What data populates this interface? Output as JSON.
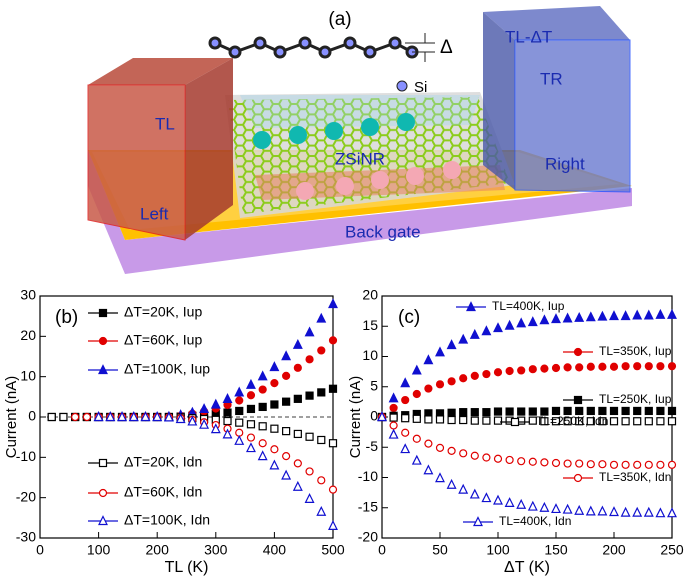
{
  "diagram": {
    "label": "(a)",
    "delta": "Δ",
    "si": "Si",
    "right_top": "TL-ΔT",
    "right_mid": "TR",
    "left_top": "TL",
    "left": "Left",
    "right": "Right",
    "ribbon": "ZSiNR",
    "gate": "Back gate"
  },
  "chart_data": [
    {
      "type": "scatter",
      "panel_label": "(b)",
      "xlabel": "TL (K)",
      "ylabel": "Current (nA)",
      "xlim": [
        0,
        500
      ],
      "xticks": [
        0,
        100,
        200,
        300,
        400,
        500
      ],
      "ylim": [
        -30,
        30
      ],
      "yticks": [
        -30,
        -20,
        -10,
        0,
        10,
        20,
        30
      ],
      "hline": 0,
      "x": [
        20,
        40,
        60,
        80,
        100,
        120,
        140,
        160,
        180,
        200,
        220,
        240,
        260,
        280,
        300,
        320,
        340,
        360,
        380,
        400,
        420,
        440,
        460,
        480,
        500
      ],
      "series": [
        {
          "name": "ΔT=20K, Iup",
          "color": "#000000",
          "marker": "square",
          "filled": true,
          "values": [
            0,
            0,
            0,
            0,
            0,
            0,
            0,
            0,
            0,
            0,
            0,
            0.1,
            0.3,
            0.5,
            0.8,
            1.1,
            1.5,
            2.0,
            2.5,
            3.1,
            3.8,
            4.5,
            5.3,
            6.1,
            7.0
          ]
        },
        {
          "name": "ΔT=60K, Iup",
          "color": "#e00000",
          "marker": "circle",
          "filled": true,
          "values": [
            null,
            null,
            0,
            0,
            0,
            0,
            0,
            0,
            0,
            0,
            0.1,
            0.3,
            0.8,
            1.4,
            2.1,
            3.0,
            4.1,
            5.4,
            6.8,
            8.4,
            10.2,
            12.2,
            14.3,
            16.5,
            19.0
          ]
        },
        {
          "name": "ΔT=100K, Iup",
          "color": "#1010d0",
          "marker": "triangle",
          "filled": true,
          "values": [
            null,
            null,
            null,
            null,
            0,
            0,
            0,
            0,
            0,
            0,
            0.1,
            0.5,
            1.1,
            2.0,
            3.1,
            4.5,
            6.1,
            8.0,
            10.1,
            12.4,
            15.1,
            17.9,
            21.0,
            24.4,
            28.0
          ]
        },
        {
          "name": "ΔT=20K, Idn",
          "color": "#000000",
          "marker": "square",
          "filled": false,
          "values": [
            0,
            0,
            0,
            0,
            0,
            0,
            0,
            0,
            0,
            0,
            0,
            -0.1,
            -0.3,
            -0.5,
            -0.7,
            -1.0,
            -1.4,
            -1.8,
            -2.3,
            -2.9,
            -3.5,
            -4.2,
            -4.9,
            -5.7,
            -6.5
          ]
        },
        {
          "name": "ΔT=60K, Idn",
          "color": "#e00000",
          "marker": "circle",
          "filled": false,
          "values": [
            null,
            null,
            0,
            0,
            0,
            0,
            0,
            0,
            0,
            0,
            -0.1,
            -0.3,
            -0.7,
            -1.3,
            -2.0,
            -2.9,
            -3.9,
            -5.1,
            -6.5,
            -8.0,
            -9.7,
            -11.5,
            -13.5,
            -15.7,
            -18.0
          ]
        },
        {
          "name": "ΔT=100K, Idn",
          "color": "#1010d0",
          "marker": "triangle",
          "filled": false,
          "values": [
            null,
            null,
            null,
            null,
            0,
            0,
            0,
            0,
            0,
            0,
            -0.1,
            -0.5,
            -1.1,
            -1.9,
            -3.0,
            -4.3,
            -5.9,
            -7.7,
            -9.7,
            -12.0,
            -14.5,
            -17.3,
            -20.3,
            -23.5,
            -27.0
          ]
        }
      ]
    },
    {
      "type": "scatter",
      "panel_label": "(c)",
      "xlabel": "ΔT (K)",
      "ylabel": "Current (nA)",
      "xlim": [
        0,
        250
      ],
      "xticks": [
        0,
        50,
        100,
        150,
        200,
        250
      ],
      "ylim": [
        -20,
        20
      ],
      "yticks": [
        -20,
        -15,
        -10,
        -5,
        0,
        5,
        10,
        15,
        20
      ],
      "x": [
        0,
        10,
        20,
        30,
        40,
        50,
        60,
        70,
        80,
        90,
        100,
        110,
        120,
        130,
        140,
        150,
        160,
        170,
        180,
        190,
        200,
        210,
        220,
        230,
        240,
        250
      ],
      "series": [
        {
          "name": "TL=400K, Iup",
          "color": "#1010d0",
          "marker": "triangle",
          "filled": true,
          "values": [
            0,
            3.1,
            5.6,
            7.7,
            9.4,
            10.7,
            11.9,
            12.8,
            13.6,
            14.2,
            14.7,
            15.1,
            15.5,
            15.7,
            16.0,
            16.2,
            16.3,
            16.4,
            16.5,
            16.6,
            16.7,
            16.7,
            16.8,
            16.8,
            16.9,
            16.9
          ]
        },
        {
          "name": "TL=350K, Iup",
          "color": "#e00000",
          "marker": "circle",
          "filled": true,
          "values": [
            0,
            1.5,
            2.8,
            3.8,
            4.7,
            5.4,
            5.9,
            6.4,
            6.8,
            7.1,
            7.4,
            7.6,
            7.7,
            7.9,
            8.0,
            8.1,
            8.2,
            8.2,
            8.3,
            8.3,
            8.3,
            8.4,
            8.4,
            8.4,
            8.4,
            8.4
          ]
        },
        {
          "name": "TL=250K, Iup",
          "color": "#000000",
          "marker": "square",
          "filled": true,
          "values": [
            0,
            0.2,
            0.3,
            0.5,
            0.6,
            0.6,
            0.7,
            0.8,
            0.8,
            0.8,
            0.9,
            0.9,
            0.9,
            0.9,
            0.9,
            1.0,
            1.0,
            1.0,
            1.0,
            1.0,
            1.0,
            1.0,
            1.0,
            1.0,
            1.0,
            1.0
          ]
        },
        {
          "name": "TL=250K, Idn",
          "color": "#000000",
          "marker": "square",
          "filled": false,
          "values": [
            0,
            -0.1,
            -0.2,
            -0.3,
            -0.4,
            -0.4,
            -0.5,
            -0.5,
            -0.6,
            -0.6,
            -0.6,
            -0.6,
            -0.6,
            -0.6,
            -0.7,
            -0.7,
            -0.7,
            -0.7,
            -0.7,
            -0.7,
            -0.7,
            -0.7,
            -0.7,
            -0.7,
            -0.7,
            -0.7
          ]
        },
        {
          "name": "TL=350K, Idn",
          "color": "#e00000",
          "marker": "circle",
          "filled": false,
          "values": [
            0,
            -1.4,
            -2.6,
            -3.6,
            -4.4,
            -5.1,
            -5.6,
            -6.0,
            -6.4,
            -6.7,
            -6.9,
            -7.1,
            -7.3,
            -7.4,
            -7.5,
            -7.6,
            -7.7,
            -7.7,
            -7.8,
            -7.8,
            -7.9,
            -7.9,
            -7.9,
            -7.9,
            -7.9,
            -7.9
          ]
        },
        {
          "name": "TL=400K, Idn",
          "color": "#1010d0",
          "marker": "triangle",
          "filled": false,
          "values": [
            0,
            -2.9,
            -5.3,
            -7.2,
            -8.8,
            -10.1,
            -11.2,
            -12.0,
            -12.8,
            -13.4,
            -13.8,
            -14.2,
            -14.5,
            -14.8,
            -15.0,
            -15.2,
            -15.3,
            -15.5,
            -15.6,
            -15.6,
            -15.7,
            -15.8,
            -15.8,
            -15.8,
            -15.9,
            -15.9
          ]
        }
      ]
    }
  ]
}
